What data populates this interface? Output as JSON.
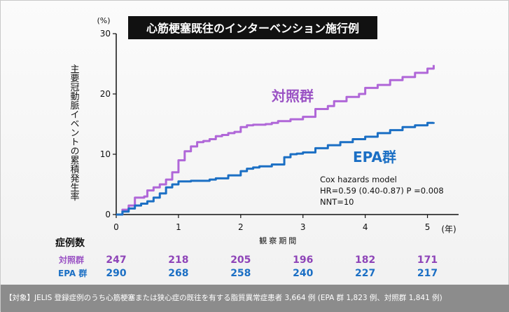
{
  "chart_data": {
    "type": "line",
    "title": "心筋梗塞既往のインターベンション施行例",
    "ylabel": "主要冠動脈イベントの累積発生率",
    "y_unit": "(%)",
    "x_unit": "(年)",
    "xlabel": "観察期間",
    "xlim": [
      0,
      5.5
    ],
    "ylim": [
      0,
      30
    ],
    "x_ticks": [
      "0",
      "1",
      "2",
      "3",
      "4",
      "5"
    ],
    "y_ticks": [
      "0",
      "10",
      "20",
      "30"
    ],
    "grid": false,
    "colors": {
      "control": "#b067d8",
      "epa": "#1b6fc4"
    },
    "series": [
      {
        "name": "対照群",
        "x": [
          0,
          0.1,
          0.2,
          0.3,
          0.35,
          0.45,
          0.5,
          0.6,
          0.7,
          0.8,
          0.9,
          1.0,
          1.1,
          1.2,
          1.3,
          1.4,
          1.5,
          1.6,
          1.7,
          1.8,
          1.9,
          2.0,
          2.1,
          2.2,
          2.3,
          2.4,
          2.5,
          2.6,
          2.8,
          3.0,
          3.2,
          3.4,
          3.5,
          3.7,
          3.9,
          4.0,
          4.2,
          4.4,
          4.6,
          4.8,
          5.0,
          5.1
        ],
        "y": [
          0,
          0.8,
          1.5,
          2.8,
          2.8,
          3.0,
          4.0,
          4.5,
          5.0,
          5.8,
          7.0,
          9.0,
          10.5,
          11.3,
          12.0,
          12.2,
          12.5,
          13.0,
          13.2,
          13.5,
          13.7,
          14.5,
          14.8,
          14.9,
          14.9,
          15.0,
          15.2,
          15.5,
          15.8,
          16.2,
          17.5,
          18.0,
          18.8,
          19.5,
          20.0,
          21.0,
          21.5,
          22.3,
          22.8,
          23.5,
          24.2,
          24.8
        ]
      },
      {
        "name": "EPA群",
        "x": [
          0,
          0.1,
          0.2,
          0.3,
          0.4,
          0.5,
          0.6,
          0.7,
          0.8,
          0.9,
          1.0,
          1.1,
          1.2,
          1.3,
          1.4,
          1.5,
          1.6,
          1.8,
          2.0,
          2.1,
          2.2,
          2.3,
          2.5,
          2.7,
          2.8,
          2.9,
          3.0,
          3.2,
          3.4,
          3.6,
          3.8,
          4.0,
          4.2,
          4.4,
          4.6,
          4.8,
          5.0,
          5.1
        ],
        "y": [
          0,
          0.5,
          1.0,
          1.5,
          1.8,
          2.2,
          2.8,
          3.5,
          4.5,
          5.0,
          5.5,
          5.5,
          5.6,
          5.6,
          5.6,
          5.8,
          6.0,
          6.5,
          7.2,
          7.6,
          7.8,
          8.0,
          8.3,
          9.5,
          10.0,
          10.1,
          10.3,
          11.0,
          11.5,
          12.0,
          12.5,
          12.9,
          13.5,
          14.0,
          14.5,
          14.8,
          15.2,
          15.3
        ]
      }
    ],
    "series_labels": {
      "control": "対照群",
      "epa": "EPA群"
    },
    "annotations": [
      "Cox hazards model",
      "HR=0.59 (0.40-0.87) P =0.008",
      "NNT=10"
    ],
    "risk_table": {
      "header": "症例数",
      "rows": [
        {
          "label": "対照群",
          "values": [
            "247",
            "218",
            "205",
            "196",
            "182",
            "171"
          ]
        },
        {
          "label": "EPA 群",
          "values": [
            "290",
            "268",
            "258",
            "240",
            "227",
            "217"
          ]
        }
      ]
    }
  },
  "footer_text": "【対象】JELIS 登録症例のうち心筋梗塞または狭心症の既往を有する脂質異常症患者 3,664 例 (EPA 群 1,823 例、対照群 1,841 例)"
}
